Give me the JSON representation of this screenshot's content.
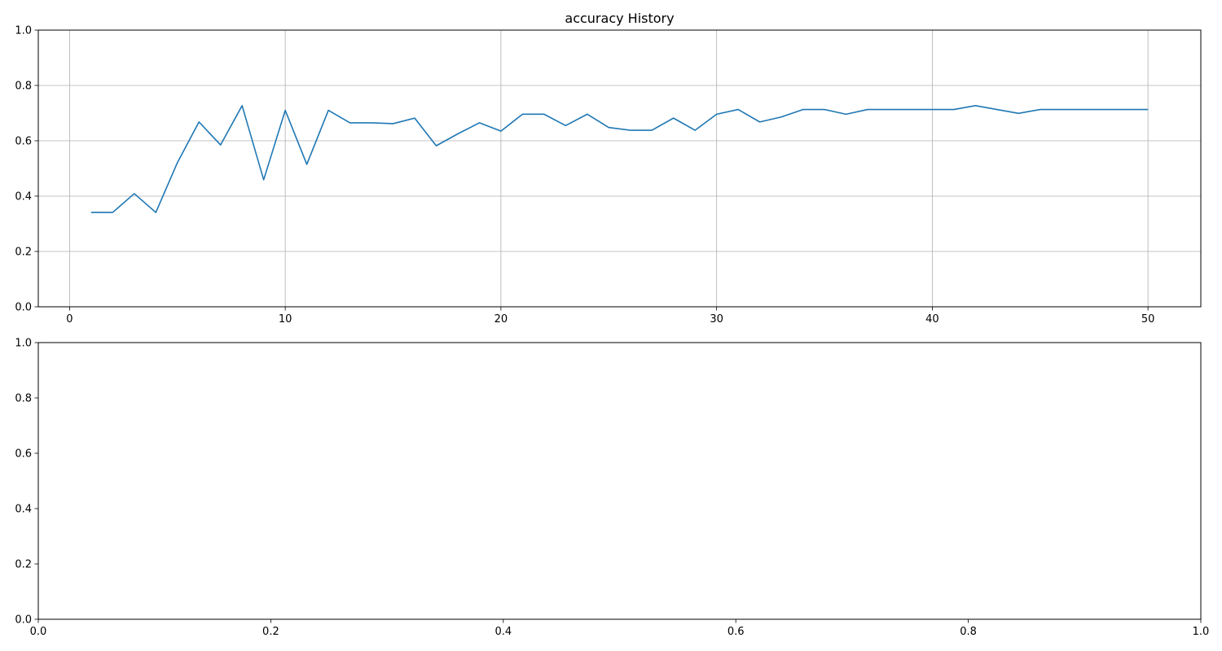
{
  "chart_data": [
    {
      "type": "line",
      "title": "accuracy History",
      "xlabel": "",
      "ylabel": "",
      "xlim": [
        -1.45,
        52.45
      ],
      "ylim": [
        0.0,
        1.0
      ],
      "x_ticks": [
        0,
        10,
        20,
        30,
        40,
        50
      ],
      "y_ticks": [
        0.0,
        0.2,
        0.4,
        0.6,
        0.8,
        1.0
      ],
      "x_tick_labels": [
        "0",
        "10",
        "20",
        "30",
        "40",
        "50"
      ],
      "y_tick_labels": [
        "0.0",
        "0.2",
        "0.4",
        "0.6",
        "0.8",
        "1.0"
      ],
      "grid": true,
      "line_color": "#1f77b4",
      "x": [
        1,
        2,
        3,
        4,
        5,
        6,
        7,
        8,
        9,
        10,
        11,
        12,
        13,
        14,
        15,
        16,
        17,
        18,
        19,
        20,
        21,
        22,
        23,
        24,
        25,
        26,
        27,
        28,
        29,
        30,
        31,
        32,
        33,
        34,
        35,
        36,
        37,
        38,
        39,
        40,
        41,
        42,
        43,
        44,
        45,
        46,
        47,
        48,
        49,
        50
      ],
      "y": [
        0.341,
        0.341,
        0.409,
        0.341,
        0.521,
        0.668,
        0.585,
        0.727,
        0.459,
        0.71,
        0.515,
        0.71,
        0.665,
        0.665,
        0.662,
        0.682,
        0.582,
        0.625,
        0.665,
        0.635,
        0.696,
        0.696,
        0.655,
        0.696,
        0.648,
        0.638,
        0.638,
        0.682,
        0.638,
        0.696,
        0.713,
        0.668,
        0.686,
        0.713,
        0.713,
        0.696,
        0.713,
        0.713,
        0.713,
        0.713,
        0.713,
        0.727,
        0.713,
        0.699,
        0.713,
        0.713,
        0.713,
        0.713,
        0.713,
        0.713
      ]
    },
    {
      "type": "line",
      "title": "",
      "xlabel": "",
      "ylabel": "",
      "xlim": [
        0.0,
        1.0
      ],
      "ylim": [
        0.0,
        1.0
      ],
      "x_ticks": [
        0.0,
        0.2,
        0.4,
        0.6,
        0.8,
        1.0
      ],
      "y_ticks": [
        0.0,
        0.2,
        0.4,
        0.6,
        0.8,
        1.0
      ],
      "x_tick_labels": [
        "0.0",
        "0.2",
        "0.4",
        "0.6",
        "0.8",
        "1.0"
      ],
      "y_tick_labels": [
        "0.0",
        "0.2",
        "0.4",
        "0.6",
        "0.8",
        "1.0"
      ],
      "grid": false,
      "x": [],
      "y": []
    }
  ]
}
